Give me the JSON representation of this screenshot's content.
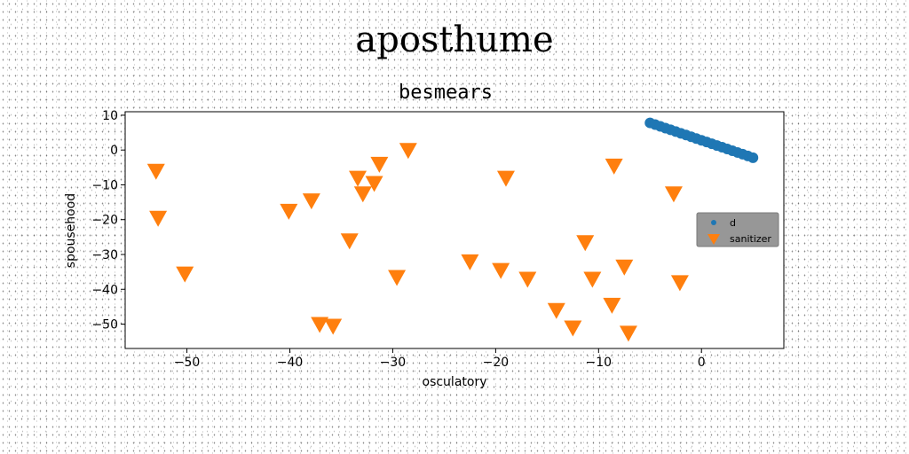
{
  "figure": {
    "suptitle": "aposthume"
  },
  "colors": {
    "d": "#1f77b4",
    "sanitizer": "#ff7f0e",
    "legend_bg": "#8c8c8c"
  },
  "chart_data": {
    "type": "scatter",
    "title": "besmears",
    "xlabel": "osculatory",
    "ylabel": "spousehood",
    "xlim": [
      -56,
      8
    ],
    "ylim": [
      -57,
      11
    ],
    "xticks": [
      -50,
      -40,
      -30,
      -20,
      -10,
      0
    ],
    "yticks": [
      10,
      0,
      -10,
      -20,
      -30,
      -40,
      -50
    ],
    "grid": false,
    "legend_position": "center-right",
    "series": [
      {
        "name": "d",
        "marker": "circle",
        "x": [
          -5.0,
          -4.5,
          -4.0,
          -3.5,
          -3.0,
          -2.5,
          -2.0,
          -1.5,
          -1.0,
          -0.5,
          0.0,
          0.5,
          1.0,
          1.5,
          2.0,
          2.5,
          3.0,
          3.5,
          4.0,
          4.5,
          5.0
        ],
        "y": [
          7.8,
          7.3,
          6.8,
          6.3,
          5.8,
          5.3,
          4.8,
          4.3,
          3.8,
          3.3,
          2.8,
          2.3,
          1.8,
          1.3,
          0.8,
          0.3,
          -0.2,
          -0.7,
          -1.2,
          -1.7,
          -2.2
        ]
      },
      {
        "name": "sanitizer",
        "marker": "triangle-down",
        "x": [
          -53,
          -52.8,
          -50.2,
          -40.1,
          -37.9,
          -37.1,
          -35.8,
          -34.2,
          -33.4,
          -32.9,
          -31.8,
          -31.3,
          -29.6,
          -28.5,
          -22.5,
          -19.5,
          -19.0,
          -16.9,
          -14.1,
          -12.5,
          -11.3,
          -10.6,
          -8.5,
          -8.7,
          -7.5,
          -7.1,
          -2.7,
          -2.1
        ],
        "y": [
          -6.0,
          -19.5,
          -35.5,
          -17.5,
          -14.5,
          -50.0,
          -50.5,
          -26.0,
          -8.0,
          -12.5,
          -9.5,
          -4.0,
          -36.5,
          0.0,
          -32.0,
          -34.5,
          -8.0,
          -37.0,
          -46.0,
          -51.0,
          -26.5,
          -37.0,
          -4.5,
          -44.5,
          -33.5,
          -52.5,
          -12.5,
          -38.0
        ]
      }
    ]
  }
}
